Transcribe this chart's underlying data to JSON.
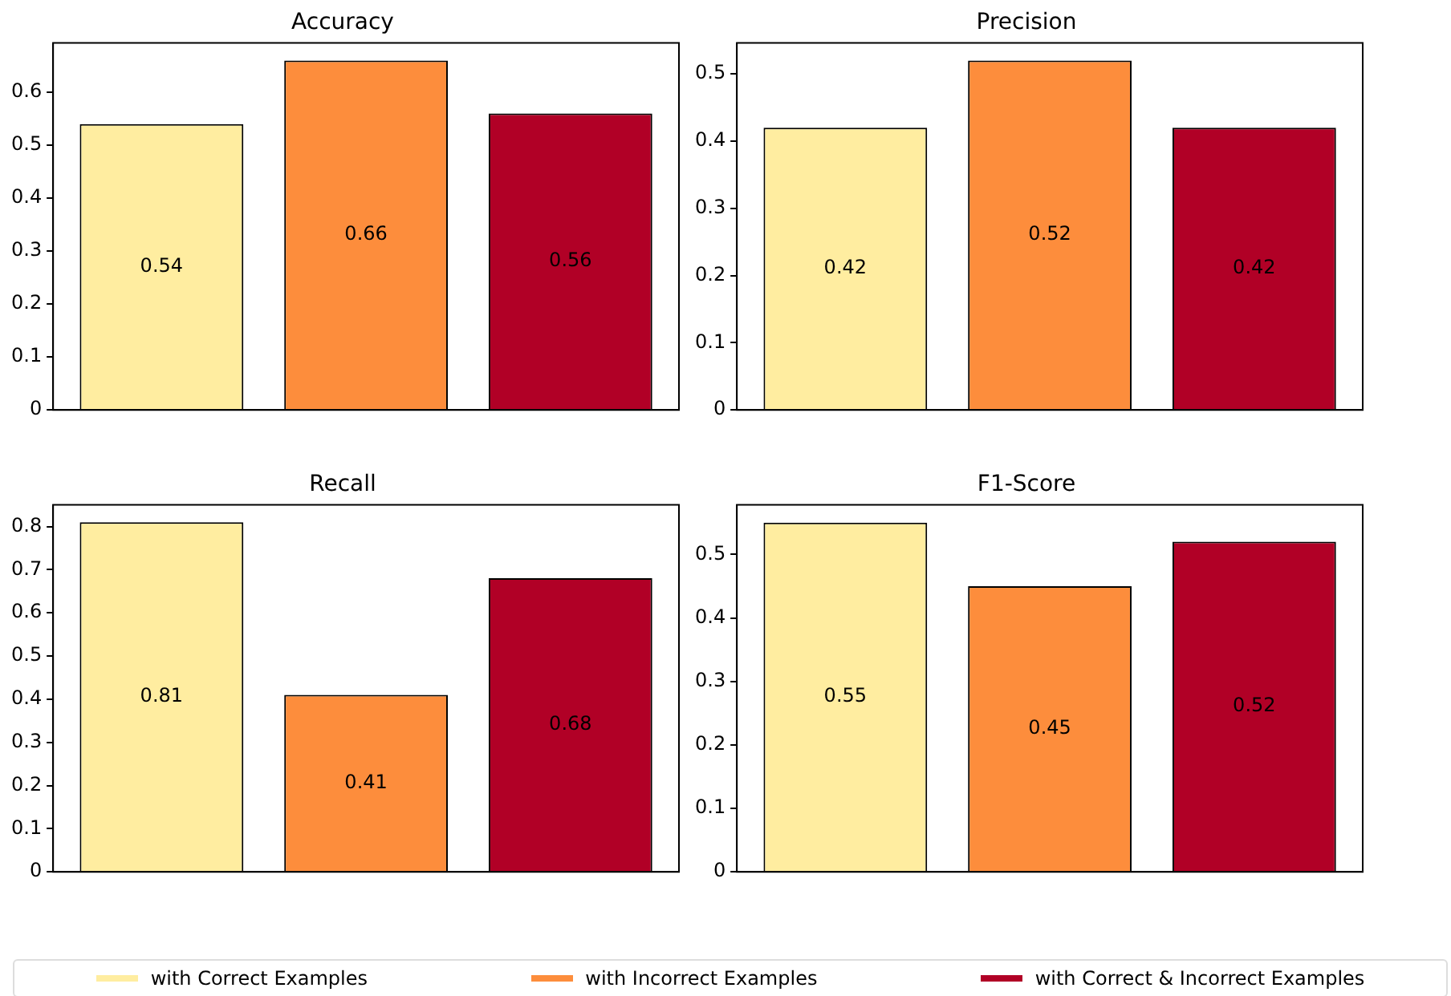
{
  "chart_data": [
    {
      "type": "bar",
      "title": "Accuracy",
      "categories": [
        null
      ],
      "ylim": [
        0,
        0.693
      ],
      "yticks": [
        0,
        0.1,
        0.2,
        0.3,
        0.4,
        0.5,
        0.6
      ],
      "data_labels": true,
      "legend": "bottom",
      "series": [
        {
          "name": "with Correct Examples",
          "color": "#ffeda0",
          "values": [
            0.54
          ]
        },
        {
          "name": "with Incorrect Examples",
          "color": "#fd8d3c",
          "values": [
            0.66
          ]
        },
        {
          "name": "with Correct & Incorrect Examples",
          "color": "#b10026",
          "values": [
            0.56
          ]
        }
      ]
    },
    {
      "type": "bar",
      "title": "Precision",
      "categories": [
        null
      ],
      "ylim": [
        0,
        0.546
      ],
      "yticks": [
        0,
        0.1,
        0.2,
        0.3,
        0.4,
        0.5
      ],
      "data_labels": true,
      "series": [
        {
          "color": "#ffeda0",
          "values": [
            0.42
          ]
        },
        {
          "color": "#fd8d3c",
          "values": [
            0.52
          ]
        },
        {
          "color": "#b10026",
          "values": [
            0.42
          ]
        }
      ]
    },
    {
      "type": "bar",
      "title": "Recall",
      "categories": [
        null
      ],
      "ylim": [
        0,
        0.85
      ],
      "yticks": [
        0,
        0.1,
        0.2,
        0.3,
        0.4,
        0.5,
        0.6,
        0.7,
        0.8
      ],
      "data_labels": true,
      "series": [
        {
          "color": "#ffeda0",
          "values": [
            0.81
          ]
        },
        {
          "color": "#fd8d3c",
          "values": [
            0.41
          ]
        },
        {
          "color": "#b10026",
          "values": [
            0.68
          ]
        }
      ]
    },
    {
      "type": "bar",
      "title": "F1-Score",
      "categories": [
        null
      ],
      "ylim": [
        0,
        0.578
      ],
      "yticks": [
        0,
        0.1,
        0.2,
        0.3,
        0.4,
        0.5
      ],
      "data_labels": true,
      "series": [
        {
          "color": "#ffeda0",
          "values": [
            0.55
          ]
        },
        {
          "color": "#fd8d3c",
          "values": [
            0.45
          ]
        },
        {
          "color": "#b10026",
          "values": [
            0.52
          ]
        }
      ]
    }
  ]
}
